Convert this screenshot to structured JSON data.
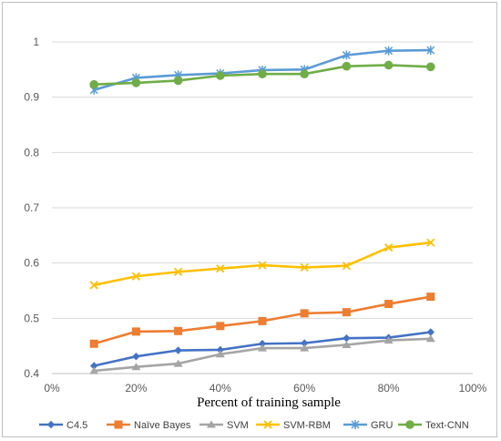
{
  "chart_data": {
    "type": "line",
    "title": "",
    "xlabel": "Percent of training sample",
    "ylabel": "",
    "x_ticks": [
      "0%",
      "20%",
      "40%",
      "60%",
      "80%",
      "100%"
    ],
    "y_ticks": [
      "0.4",
      "0.5",
      "0.6",
      "0.7",
      "0.8",
      "0.9",
      "1"
    ],
    "xlim": [
      0,
      100
    ],
    "ylim": [
      0.4,
      1.0
    ],
    "grid": "horizontal",
    "legend_position": "bottom",
    "x": [
      10,
      20,
      30,
      40,
      50,
      60,
      70,
      80,
      90
    ],
    "series": [
      {
        "name": "C4.5",
        "color": "#4472c4",
        "marker": "diamond",
        "values": [
          0.414,
          0.431,
          0.442,
          0.443,
          0.454,
          0.455,
          0.464,
          0.465,
          0.475
        ]
      },
      {
        "name": "Naïve Bayes",
        "color": "#ed7d31",
        "marker": "square",
        "values": [
          0.454,
          0.476,
          0.477,
          0.486,
          0.495,
          0.509,
          0.511,
          0.526,
          0.539
        ]
      },
      {
        "name": "SVM",
        "color": "#a5a5a5",
        "marker": "triangle",
        "values": [
          0.405,
          0.412,
          0.418,
          0.435,
          0.446,
          0.446,
          0.452,
          0.46,
          0.463
        ]
      },
      {
        "name": "SVM-RBM",
        "color": "#ffc000",
        "marker": "x",
        "values": [
          0.56,
          0.576,
          0.584,
          0.59,
          0.596,
          0.592,
          0.595,
          0.628,
          0.637
        ]
      },
      {
        "name": "GRU",
        "color": "#5b9bd5",
        "marker": "star",
        "values": [
          0.913,
          0.935,
          0.94,
          0.943,
          0.949,
          0.95,
          0.976,
          0.984,
          0.985
        ]
      },
      {
        "name": "Text-CNN",
        "color": "#70ad47",
        "marker": "circle",
        "values": [
          0.923,
          0.926,
          0.93,
          0.939,
          0.942,
          0.942,
          0.956,
          0.958,
          0.955
        ]
      }
    ]
  }
}
